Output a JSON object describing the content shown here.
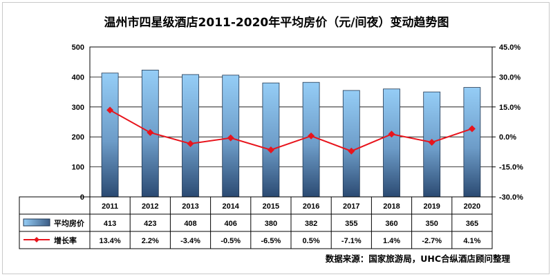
{
  "title": "温州市四星级酒店2011-2020年平均房价（元/间夜）变动趋势图",
  "source": "数据来源：国家旅游局，UHC合纵酒店顾问整理",
  "colors": {
    "bar": "#8ec6f2",
    "bar_dark": "#2b4a72",
    "line": "#e8141c"
  },
  "chart_data": {
    "type": "bar",
    "categories": [
      "2011",
      "2012",
      "2013",
      "2014",
      "2015",
      "2016",
      "2017",
      "2018",
      "2019",
      "2020"
    ],
    "series": [
      {
        "name": "平均房价",
        "type": "bar",
        "axis": "left",
        "values": [
          413,
          423,
          408,
          406,
          380,
          382,
          355,
          360,
          350,
          365
        ],
        "labels": [
          "413",
          "423",
          "408",
          "406",
          "380",
          "382",
          "355",
          "360",
          "350",
          "365"
        ]
      },
      {
        "name": "增长率",
        "type": "line",
        "axis": "right",
        "values": [
          13.4,
          2.2,
          -3.4,
          -0.5,
          -6.5,
          0.5,
          -7.1,
          1.4,
          -2.7,
          4.1
        ],
        "labels": [
          "13.4%",
          "2.2%",
          "-3.4%",
          "-0.5%",
          "-6.5%",
          "0.5%",
          "-7.1%",
          "1.4%",
          "-2.7%",
          "4.1%"
        ]
      }
    ],
    "ylim": [
      0,
      500
    ],
    "yticks": [
      "0",
      "100",
      "200",
      "300",
      "400",
      "500"
    ],
    "y2lim": [
      -30,
      45
    ],
    "y2ticks": [
      "-30.0%",
      "-15.0%",
      "0.0%",
      "15.0%",
      "30.0%",
      "45.0%"
    ],
    "grid": true,
    "legend": "data-table-left"
  }
}
